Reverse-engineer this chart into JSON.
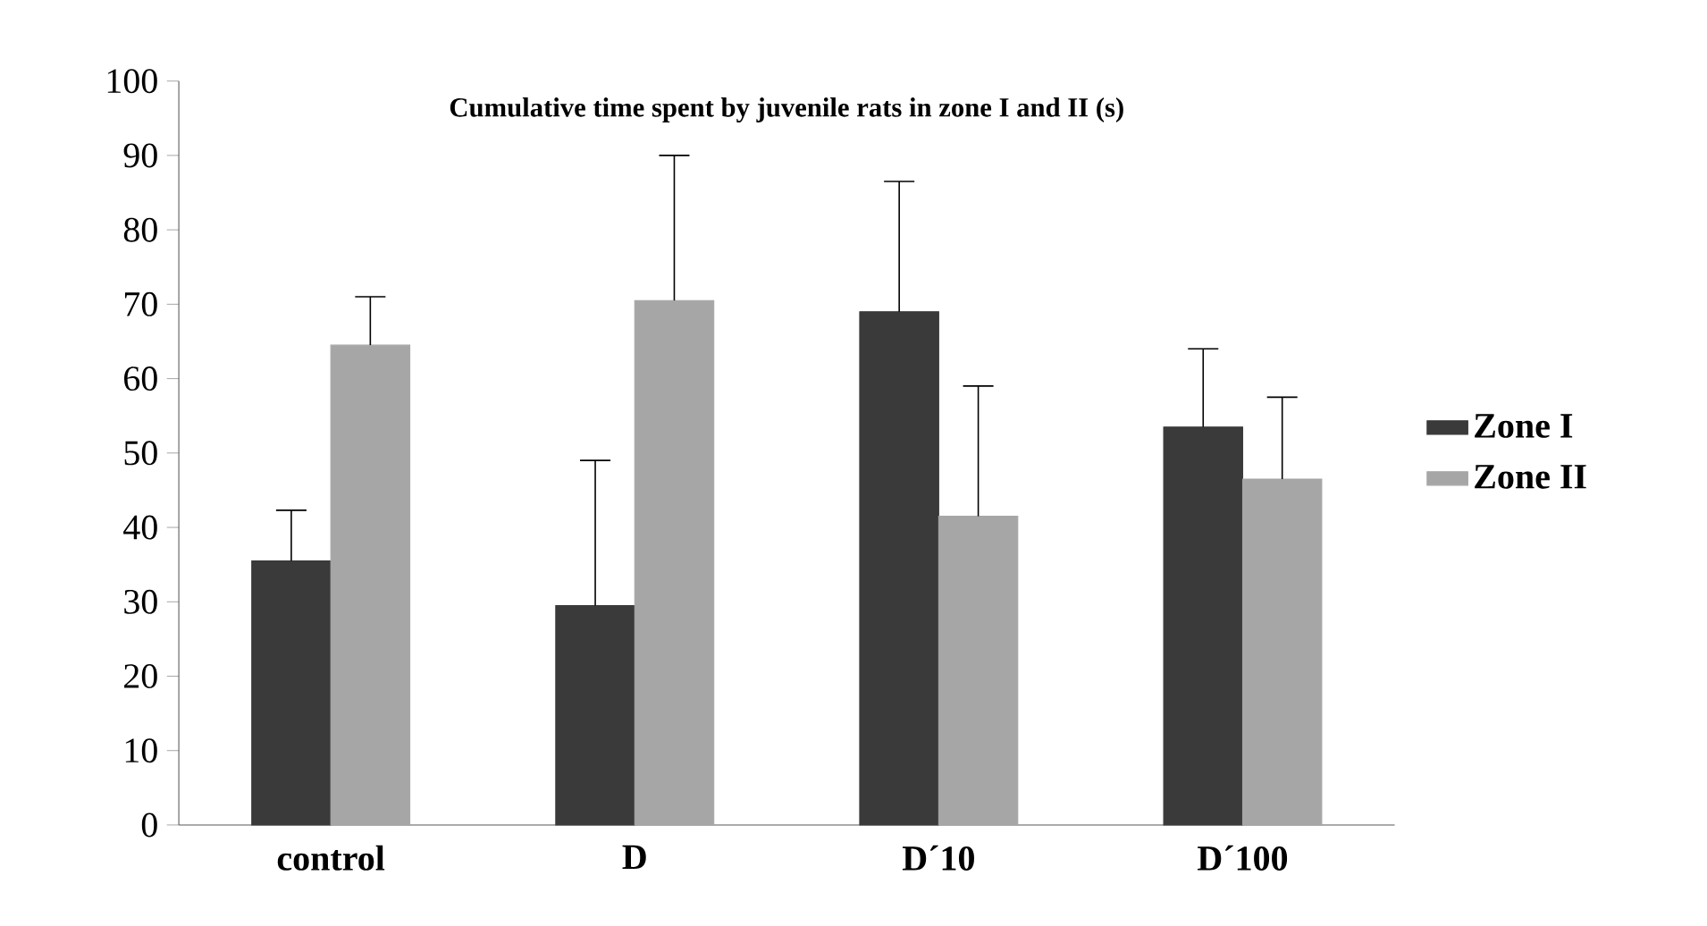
{
  "chart_data": {
    "type": "bar",
    "title": "Cumulative time spent by juvenile rats in zone I and II (s)",
    "categories": [
      "control",
      "D",
      "D´10",
      "D´100"
    ],
    "series": [
      {
        "name": "Zone I",
        "color": "#3a3a3a",
        "values": [
          35.5,
          29.5,
          69,
          53.5
        ],
        "errors": [
          [
            35.5,
            42.3
          ],
          [
            29.5,
            49
          ],
          [
            69,
            86.5
          ],
          [
            53.5,
            64
          ]
        ]
      },
      {
        "name": "Zone II",
        "color": "#a6a6a6",
        "values": [
          64.5,
          70.5,
          41.5,
          46.5
        ],
        "errors": [
          [
            64.5,
            71
          ],
          [
            70.5,
            90
          ],
          [
            41.5,
            59
          ],
          [
            46.5,
            57.5
          ]
        ]
      }
    ],
    "ylim": [
      0,
      100
    ],
    "yticks": [
      0,
      10,
      20,
      30,
      40,
      50,
      60,
      70,
      80,
      90,
      100
    ],
    "grid": false,
    "legend": "right"
  }
}
